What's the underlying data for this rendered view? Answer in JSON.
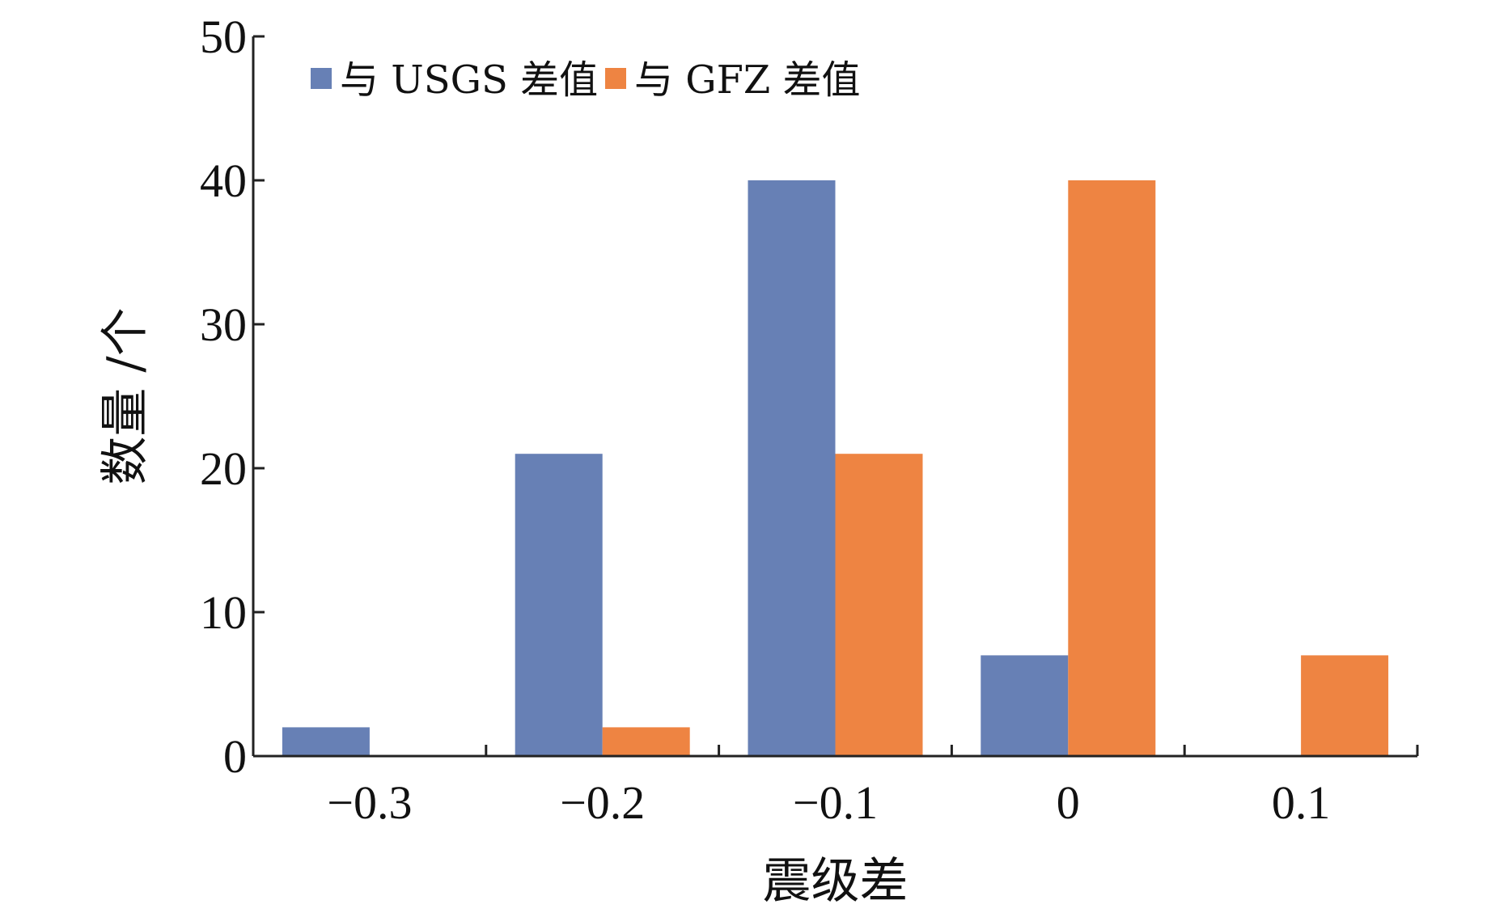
{
  "chart_data": {
    "type": "bar",
    "categories": [
      "−0.3",
      "−0.2",
      "−0.1",
      "0",
      "0.1"
    ],
    "series": [
      {
        "name": "与 USGS 差值",
        "color": "#6780b5",
        "values": [
          2,
          21,
          40,
          7,
          0
        ]
      },
      {
        "name": "与 GFZ 差值",
        "color": "#ee8442",
        "values": [
          0,
          2,
          21,
          40,
          7
        ]
      }
    ],
    "xlabel": "震级差",
    "ylabel": "数量 /个",
    "ylim": [
      0,
      50
    ],
    "yticks": [
      "0",
      "10",
      "20",
      "30",
      "40",
      "50"
    ],
    "grid": false,
    "legend_position": "top-left"
  }
}
